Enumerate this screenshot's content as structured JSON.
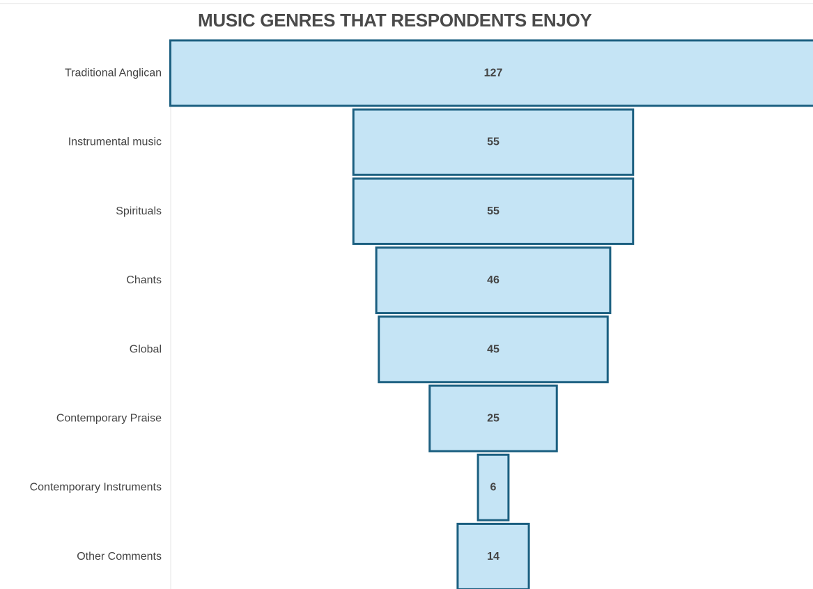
{
  "chart_data": {
    "type": "bar",
    "title": "MUSIC GENRES THAT RESPONDENTS ENJOY",
    "categories": [
      "Traditional Anglican",
      "Instrumental music",
      "Spirituals",
      "Chants",
      "Global",
      "Contemporary Praise",
      "Contemporary Instruments",
      "Other Comments"
    ],
    "values": [
      127,
      55,
      55,
      46,
      45,
      25,
      6,
      14
    ],
    "xlabel": "",
    "ylabel": "",
    "grid": false,
    "colors": {
      "fill": "#c5e4f5",
      "stroke": "#1b5f80"
    }
  }
}
